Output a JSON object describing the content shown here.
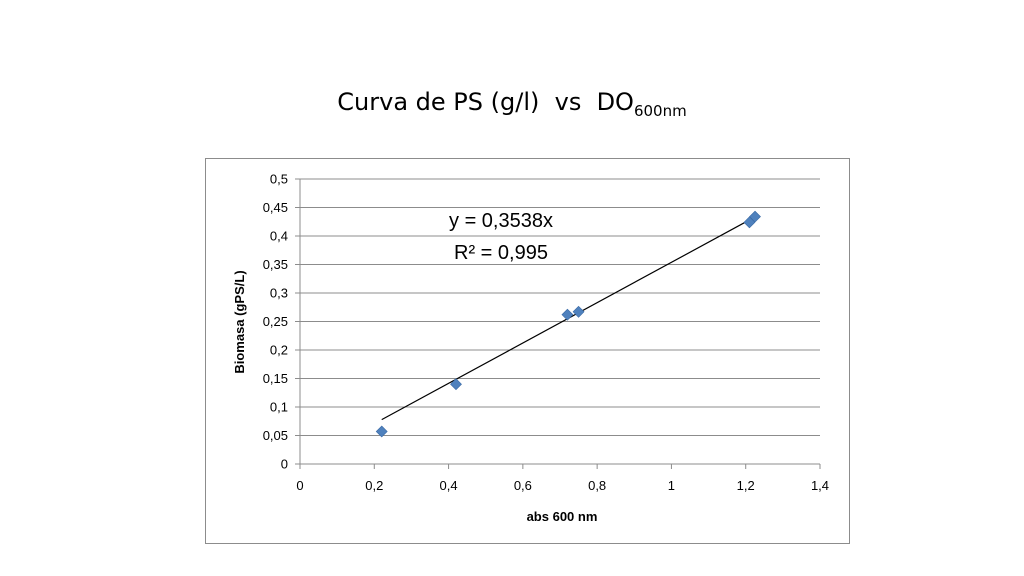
{
  "slide": {
    "title": "Curva de PS (g/l)  vs  DO",
    "title_subscript": "600nm"
  },
  "chart_data": {
    "type": "scatter",
    "title": "",
    "xlabel": "abs 600 nm",
    "ylabel": "Biomasa (gPS/L)",
    "xlim": [
      0,
      1.4
    ],
    "ylim": [
      0,
      0.5
    ],
    "x_ticks": [
      "0",
      "0,2",
      "0,4",
      "0,6",
      "0,8",
      "1",
      "1,2",
      "1,4"
    ],
    "y_ticks": [
      "0",
      "0,05",
      "0,1",
      "0,15",
      "0,2",
      "0,25",
      "0,3",
      "0,35",
      "0,4",
      "0,45",
      "0,5"
    ],
    "grid": {
      "horizontal": true,
      "vertical": false
    },
    "legend": "none",
    "series": [
      {
        "marker": "diamond",
        "color": "#4f81bd",
        "points": [
          {
            "x": 0.22,
            "y": 0.057
          },
          {
            "x": 0.42,
            "y": 0.14
          },
          {
            "x": 0.72,
            "y": 0.262
          },
          {
            "x": 0.75,
            "y": 0.267
          },
          {
            "x": 1.21,
            "y": 0.424
          },
          {
            "x": 1.225,
            "y": 0.434
          }
        ]
      }
    ],
    "trendline": {
      "type": "linear",
      "slope": 0.3538,
      "intercept": 0,
      "x_range": [
        0.22,
        1.225
      ],
      "color": "#000000",
      "equation": "y = 0,3538x",
      "r_squared": "R² = 0,995"
    }
  }
}
